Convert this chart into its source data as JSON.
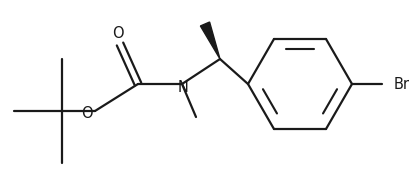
{
  "bg_color": "#ffffff",
  "line_color": "#1a1a1a",
  "line_width": 1.6,
  "font_size": 10.5,
  "figsize": [
    4.14,
    1.89
  ],
  "dpi": 100,
  "xlim": [
    0,
    414
  ],
  "ylim": [
    0,
    189
  ]
}
